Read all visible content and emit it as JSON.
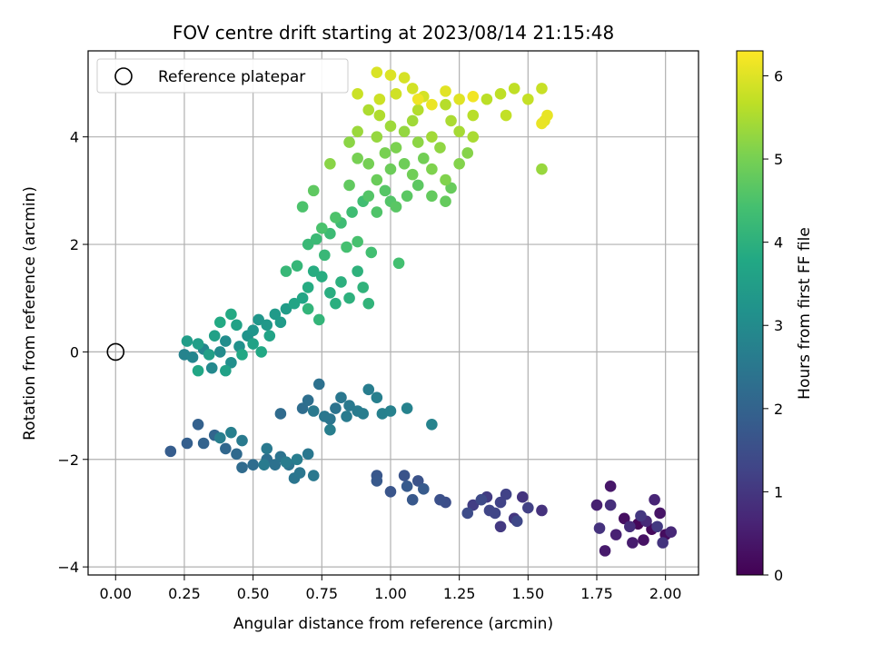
{
  "chart_data": {
    "type": "scatter",
    "title": "FOV centre drift starting at 2023/08/14 21:15:48",
    "xlabel": "Angular distance from reference (arcmin)",
    "ylabel": "Rotation from reference (arcmin)",
    "xlim": [
      -0.1,
      2.12
    ],
    "ylim": [
      -4.15,
      5.6
    ],
    "xticks": [
      0.0,
      0.25,
      0.5,
      0.75,
      1.0,
      1.25,
      1.5,
      1.75,
      2.0
    ],
    "xtick_labels": [
      "0.00",
      "0.25",
      "0.50",
      "0.75",
      "1.00",
      "1.25",
      "1.50",
      "1.75",
      "2.00"
    ],
    "yticks": [
      -4,
      -2,
      0,
      2,
      4
    ],
    "ytick_labels": [
      "−4",
      "−2",
      "0",
      "2",
      "4"
    ],
    "grid": true,
    "legend": {
      "position": "top-left",
      "entries": [
        "Reference platepar"
      ]
    },
    "reference_point": {
      "x": 0.0,
      "y": 0.0
    },
    "colorbar": {
      "label": "Hours from first FF file",
      "colormap": "viridis",
      "range": [
        0,
        6.3
      ],
      "ticks": [
        0,
        1,
        2,
        3,
        4,
        5,
        6
      ],
      "tick_labels": [
        "0",
        "1",
        "2",
        "3",
        "4",
        "5",
        "6"
      ]
    },
    "points": [
      [
        1.9,
        -3.2,
        0.1
      ],
      [
        1.95,
        -3.3,
        0.15
      ],
      [
        2.0,
        -3.4,
        0.2
      ],
      [
        1.85,
        -3.1,
        0.25
      ],
      [
        1.92,
        -3.5,
        0.3
      ],
      [
        1.98,
        -3.0,
        0.35
      ],
      [
        1.8,
        -2.5,
        0.4
      ],
      [
        1.78,
        -3.7,
        0.45
      ],
      [
        1.88,
        -3.55,
        0.5
      ],
      [
        1.75,
        -2.85,
        0.55
      ],
      [
        1.82,
        -3.4,
        0.6
      ],
      [
        1.96,
        -2.75,
        0.65
      ],
      [
        2.02,
        -3.35,
        0.7
      ],
      [
        1.93,
        -3.15,
        0.75
      ],
      [
        1.87,
        -3.25,
        0.8
      ],
      [
        1.8,
        -2.85,
        0.85
      ],
      [
        1.76,
        -3.28,
        0.9
      ],
      [
        1.99,
        -3.55,
        0.95
      ],
      [
        1.91,
        -3.05,
        1.0
      ],
      [
        1.97,
        -3.25,
        1.05
      ],
      [
        1.55,
        -2.95,
        0.9
      ],
      [
        1.48,
        -2.7,
        0.95
      ],
      [
        1.45,
        -3.1,
        1.0
      ],
      [
        1.4,
        -3.25,
        1.05
      ],
      [
        1.35,
        -2.7,
        1.1
      ],
      [
        1.3,
        -2.85,
        1.15
      ],
      [
        1.5,
        -2.9,
        1.2
      ],
      [
        1.42,
        -2.65,
        1.25
      ],
      [
        1.38,
        -3.0,
        1.3
      ],
      [
        1.46,
        -3.15,
        1.35
      ],
      [
        1.33,
        -2.75,
        1.4
      ],
      [
        1.28,
        -3.0,
        1.45
      ],
      [
        1.2,
        -2.8,
        1.5
      ],
      [
        1.18,
        -2.75,
        1.55
      ],
      [
        1.1,
        -2.4,
        1.6
      ],
      [
        1.05,
        -2.3,
        1.62
      ],
      [
        1.0,
        -2.6,
        1.65
      ],
      [
        0.95,
        -2.3,
        1.7
      ],
      [
        1.08,
        -2.75,
        1.72
      ],
      [
        0.95,
        -2.4,
        1.75
      ],
      [
        1.06,
        -2.5,
        1.78
      ],
      [
        1.12,
        -2.55,
        1.8
      ],
      [
        1.4,
        -2.8,
        1.25
      ],
      [
        1.36,
        -2.95,
        1.3
      ],
      [
        0.2,
        -1.85,
        1.85
      ],
      [
        0.26,
        -1.7,
        1.9
      ],
      [
        0.3,
        -1.35,
        1.95
      ],
      [
        0.32,
        -1.7,
        2.0
      ],
      [
        0.36,
        -1.55,
        2.05
      ],
      [
        0.4,
        -1.8,
        2.1
      ],
      [
        0.44,
        -1.9,
        2.15
      ],
      [
        0.46,
        -2.15,
        2.2
      ],
      [
        0.5,
        -2.1,
        2.25
      ],
      [
        0.55,
        -2.0,
        2.3
      ],
      [
        0.58,
        -2.1,
        2.35
      ],
      [
        0.6,
        -1.95,
        2.4
      ],
      [
        0.63,
        -2.1,
        2.42
      ],
      [
        0.65,
        -2.35,
        2.45
      ],
      [
        0.67,
        -2.25,
        2.48
      ],
      [
        0.7,
        -1.9,
        2.5
      ],
      [
        0.72,
        -2.3,
        2.52
      ],
      [
        0.55,
        -1.8,
        2.55
      ],
      [
        0.46,
        -1.65,
        2.58
      ],
      [
        0.54,
        -2.1,
        2.6
      ],
      [
        0.62,
        -2.05,
        2.62
      ],
      [
        0.66,
        -2.0,
        2.65
      ],
      [
        0.38,
        -1.6,
        2.68
      ],
      [
        0.42,
        -1.5,
        2.7
      ],
      [
        0.6,
        -1.15,
        2.2
      ],
      [
        0.68,
        -1.05,
        2.25
      ],
      [
        0.7,
        -0.9,
        2.3
      ],
      [
        0.74,
        -0.6,
        2.35
      ],
      [
        0.8,
        -1.05,
        2.4
      ],
      [
        0.78,
        -1.25,
        2.45
      ],
      [
        0.82,
        -0.85,
        2.5
      ],
      [
        0.85,
        -1.0,
        2.55
      ],
      [
        0.88,
        -1.1,
        2.6
      ],
      [
        0.92,
        -0.7,
        2.65
      ],
      [
        0.95,
        -0.85,
        2.7
      ],
      [
        0.97,
        -1.15,
        2.72
      ],
      [
        1.0,
        -1.1,
        2.75
      ],
      [
        1.06,
        -1.05,
        2.78
      ],
      [
        1.15,
        -1.35,
        2.8
      ],
      [
        0.76,
        -1.2,
        2.5
      ],
      [
        0.72,
        -1.1,
        2.55
      ],
      [
        0.84,
        -1.2,
        2.6
      ],
      [
        0.9,
        -1.15,
        2.65
      ],
      [
        0.78,
        -1.45,
        2.68
      ],
      [
        0.25,
        -0.05,
        2.8
      ],
      [
        0.28,
        -0.1,
        2.85
      ],
      [
        0.32,
        0.05,
        2.9
      ],
      [
        0.35,
        -0.3,
        2.95
      ],
      [
        0.38,
        0.0,
        3.0
      ],
      [
        0.4,
        0.2,
        3.05
      ],
      [
        0.42,
        -0.2,
        3.1
      ],
      [
        0.45,
        0.1,
        3.15
      ],
      [
        0.48,
        0.3,
        3.2
      ],
      [
        0.5,
        0.4,
        3.25
      ],
      [
        0.52,
        0.6,
        3.3
      ],
      [
        0.55,
        0.5,
        3.35
      ],
      [
        0.58,
        0.7,
        3.4
      ],
      [
        0.6,
        0.55,
        3.42
      ],
      [
        0.62,
        0.8,
        3.45
      ],
      [
        0.26,
        0.2,
        3.48
      ],
      [
        0.3,
        0.15,
        3.5
      ],
      [
        0.34,
        -0.05,
        3.52
      ],
      [
        0.36,
        0.3,
        3.55
      ],
      [
        0.4,
        -0.35,
        3.58
      ],
      [
        0.44,
        0.5,
        3.6
      ],
      [
        0.5,
        0.15,
        3.62
      ],
      [
        0.56,
        0.3,
        3.65
      ],
      [
        0.65,
        0.9,
        3.68
      ],
      [
        0.68,
        1.0,
        3.7
      ],
      [
        0.3,
        -0.35,
        3.72
      ],
      [
        0.46,
        -0.05,
        3.75
      ],
      [
        0.53,
        0.0,
        3.78
      ],
      [
        0.38,
        0.55,
        3.8
      ],
      [
        0.42,
        0.7,
        3.82
      ],
      [
        0.7,
        1.2,
        3.85
      ],
      [
        0.72,
        1.5,
        3.88
      ],
      [
        0.75,
        1.4,
        3.9
      ],
      [
        0.78,
        1.1,
        3.92
      ],
      [
        0.8,
        0.9,
        3.95
      ],
      [
        0.82,
        1.3,
        3.98
      ],
      [
        0.85,
        1.0,
        4.0
      ],
      [
        0.88,
        1.5,
        4.02
      ],
      [
        0.9,
        1.2,
        4.05
      ],
      [
        0.92,
        0.9,
        4.08
      ],
      [
        0.7,
        0.8,
        4.1
      ],
      [
        0.74,
        0.6,
        4.12
      ],
      [
        0.66,
        1.6,
        4.15
      ],
      [
        0.62,
        1.5,
        4.18
      ],
      [
        0.76,
        1.8,
        4.2
      ],
      [
        0.7,
        2.0,
        4.22
      ],
      [
        0.73,
        2.1,
        4.25
      ],
      [
        0.78,
        2.2,
        4.28
      ],
      [
        0.82,
        2.4,
        4.3
      ],
      [
        0.86,
        2.6,
        4.32
      ],
      [
        0.9,
        2.8,
        4.35
      ],
      [
        0.93,
        1.85,
        4.38
      ],
      [
        1.03,
        1.65,
        4.4
      ],
      [
        0.84,
        1.95,
        4.42
      ],
      [
        0.88,
        2.05,
        4.45
      ],
      [
        0.75,
        2.3,
        4.48
      ],
      [
        0.68,
        2.7,
        4.5
      ],
      [
        0.8,
        2.5,
        4.52
      ],
      [
        0.95,
        2.6,
        4.55
      ],
      [
        1.0,
        2.8,
        4.58
      ],
      [
        0.92,
        2.9,
        4.6
      ],
      [
        0.98,
        3.0,
        4.62
      ],
      [
        1.02,
        2.7,
        4.65
      ],
      [
        1.06,
        2.9,
        4.68
      ],
      [
        1.1,
        3.1,
        4.7
      ],
      [
        0.72,
        3.0,
        4.72
      ],
      [
        0.85,
        3.1,
        4.75
      ],
      [
        1.15,
        2.9,
        4.78
      ],
      [
        1.2,
        2.8,
        4.8
      ],
      [
        1.22,
        3.05,
        4.82
      ],
      [
        0.95,
        3.2,
        4.85
      ],
      [
        1.0,
        3.4,
        4.88
      ],
      [
        1.05,
        3.5,
        4.9
      ],
      [
        1.08,
        3.3,
        4.92
      ],
      [
        1.12,
        3.6,
        4.95
      ],
      [
        0.92,
        3.5,
        4.98
      ],
      [
        0.88,
        3.6,
        5.0
      ],
      [
        0.98,
        3.7,
        5.02
      ],
      [
        1.02,
        3.8,
        5.05
      ],
      [
        1.15,
        3.4,
        5.08
      ],
      [
        1.2,
        3.2,
        5.1
      ],
      [
        1.25,
        3.5,
        5.12
      ],
      [
        1.28,
        3.7,
        5.15
      ],
      [
        0.78,
        3.5,
        5.18
      ],
      [
        0.85,
        3.9,
        5.2
      ],
      [
        1.1,
        3.9,
        5.22
      ],
      [
        1.18,
        3.8,
        5.25
      ],
      [
        1.05,
        4.1,
        5.28
      ],
      [
        0.95,
        4.0,
        5.3
      ],
      [
        1.55,
        3.4,
        5.32
      ],
      [
        0.88,
        4.1,
        5.35
      ],
      [
        1.0,
        4.2,
        5.38
      ],
      [
        1.08,
        4.3,
        5.4
      ],
      [
        1.15,
        4.0,
        5.42
      ],
      [
        1.25,
        4.1,
        5.45
      ],
      [
        1.3,
        4.0,
        5.48
      ],
      [
        1.22,
        4.3,
        5.5
      ],
      [
        0.92,
        4.5,
        5.52
      ],
      [
        0.96,
        4.4,
        5.55
      ],
      [
        1.1,
        4.5,
        5.58
      ],
      [
        1.2,
        4.6,
        5.6
      ],
      [
        1.3,
        4.4,
        5.62
      ],
      [
        1.35,
        4.7,
        5.65
      ],
      [
        1.4,
        4.8,
        5.68
      ],
      [
        1.45,
        4.9,
        5.7
      ],
      [
        1.42,
        4.4,
        5.72
      ],
      [
        1.5,
        4.7,
        5.75
      ],
      [
        1.55,
        4.9,
        5.78
      ],
      [
        0.88,
        4.8,
        5.8
      ],
      [
        0.96,
        4.7,
        5.82
      ],
      [
        1.02,
        4.8,
        5.85
      ],
      [
        1.08,
        4.9,
        5.88
      ],
      [
        1.12,
        4.75,
        5.9
      ],
      [
        1.05,
        5.1,
        5.92
      ],
      [
        0.95,
        5.2,
        5.95
      ],
      [
        1.0,
        5.15,
        5.98
      ],
      [
        1.25,
        4.7,
        6.0
      ],
      [
        1.2,
        4.85,
        6.02
      ],
      [
        1.56,
        4.3,
        6.05
      ],
      [
        1.57,
        4.4,
        6.08
      ],
      [
        1.55,
        4.25,
        6.1
      ],
      [
        1.15,
        4.6,
        6.12
      ],
      [
        1.1,
        4.7,
        6.15
      ],
      [
        1.3,
        4.75,
        6.18
      ]
    ]
  }
}
